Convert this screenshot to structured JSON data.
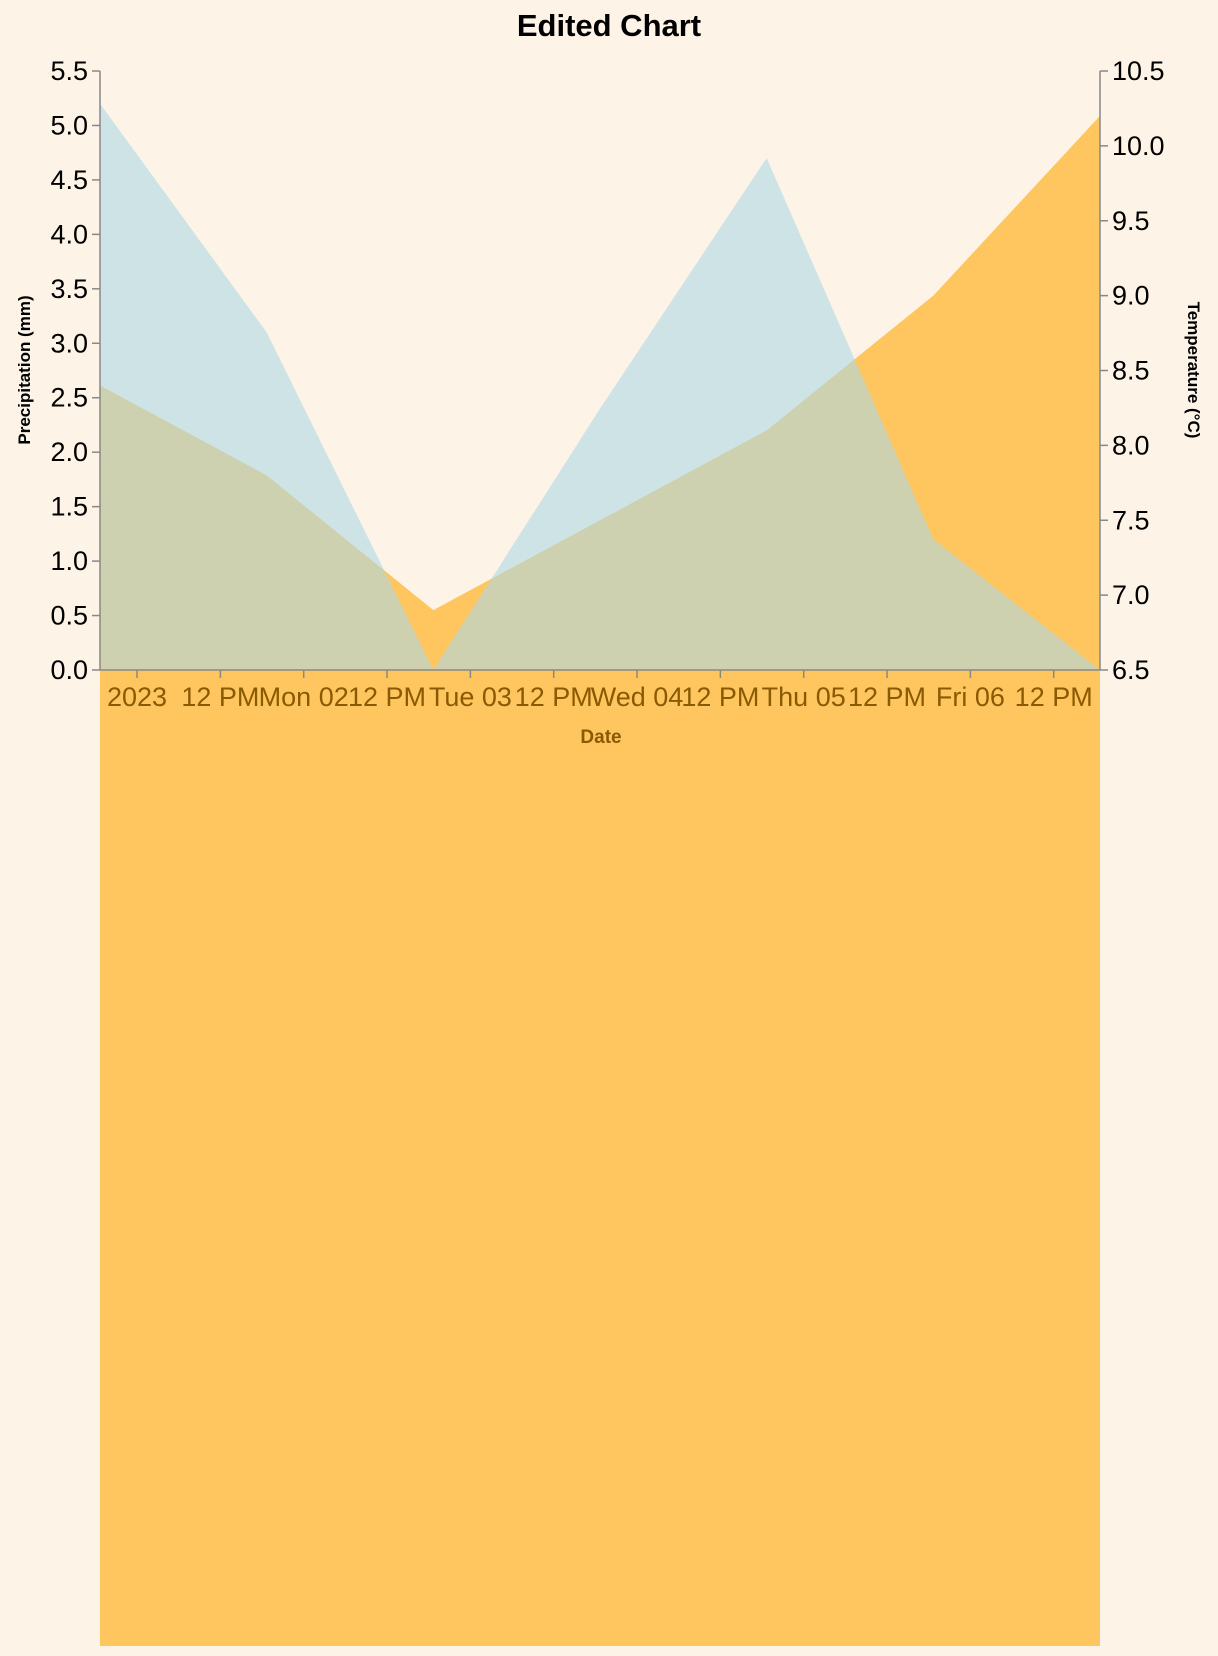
{
  "chart_data": {
    "type": "area",
    "title": "Edited Chart",
    "xlabel": "Date",
    "ylabel_left": "Precipitation (mm)",
    "ylabel_right": "Temperature (°C)",
    "x_tick_labels": [
      "2023",
      "12 PM",
      "Mon 02",
      "12 PM",
      "Tue 03",
      "12 PM",
      "Wed 04",
      "12 PM",
      "Thu 05",
      "12 PM",
      "Fri 06",
      "12 PM"
    ],
    "y_left_ticks": [
      "0.0",
      "0.5",
      "1.0",
      "1.5",
      "2.0",
      "2.5",
      "3.0",
      "3.5",
      "4.0",
      "4.5",
      "5.0",
      "5.5"
    ],
    "y_right_ticks": [
      "6.5",
      "7.0",
      "7.5",
      "8.0",
      "8.5",
      "9.0",
      "9.5",
      "10.0",
      "10.5"
    ],
    "ylim_left": [
      0,
      5.5
    ],
    "ylim_right": [
      6.5,
      10.5
    ],
    "x": [
      "2023-01-01",
      "2023-01-02",
      "2023-01-03",
      "2023-01-04",
      "2023-01-05",
      "2023-01-06",
      "2023-01-07"
    ],
    "series": [
      {
        "axis": "left",
        "values": [
          5.2,
          3.1,
          0.0,
          2.4,
          4.7,
          1.2,
          0.0
        ]
      },
      {
        "axis": "right",
        "values": [
          8.4,
          7.8,
          6.9,
          7.5,
          8.1,
          9.0,
          10.2
        ]
      }
    ],
    "grid": false,
    "colors": {
      "background": "#fdf3e7",
      "precipitation": "#add8e6",
      "temperature": "#ffb732",
      "axis": "#888888",
      "x_label": "#8a5a00"
    }
  }
}
